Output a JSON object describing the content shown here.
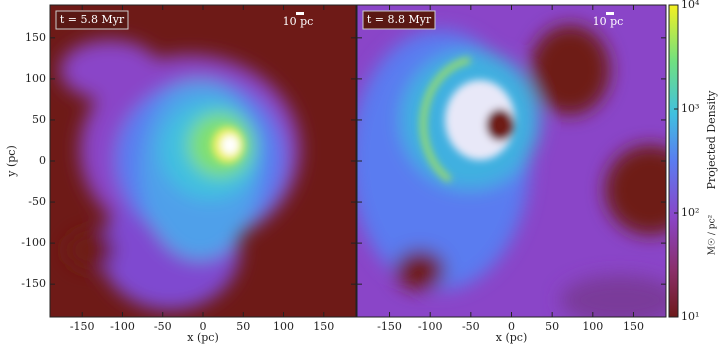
{
  "chart_data": {
    "type": "image",
    "panels": [
      {
        "label": "t = 5.8 Myr",
        "scale_bar": "10 pc",
        "xlabel": "x  (pc)"
      },
      {
        "label": "t = 8.8 Myr",
        "scale_bar": "10 pc",
        "xlabel": "x  (pc)"
      }
    ],
    "ylabel": "y  (pc)",
    "xlim": [
      -190,
      190
    ],
    "ylim": [
      -190,
      190
    ],
    "xticks": [
      -150,
      -100,
      -50,
      0,
      50,
      100,
      150
    ],
    "yticks": [
      -150,
      -100,
      -50,
      0,
      50,
      100,
      150
    ],
    "colorbar": {
      "label": "Projected Density",
      "unit": "M☉ / pc²",
      "log": true,
      "lim": [
        10,
        10000
      ],
      "ticks": [
        {
          "value": 10,
          "label": "10¹"
        },
        {
          "value": 100,
          "label": "10²"
        },
        {
          "value": 1000,
          "label": "10³"
        },
        {
          "value": 10000,
          "label": "10⁴"
        }
      ]
    }
  }
}
